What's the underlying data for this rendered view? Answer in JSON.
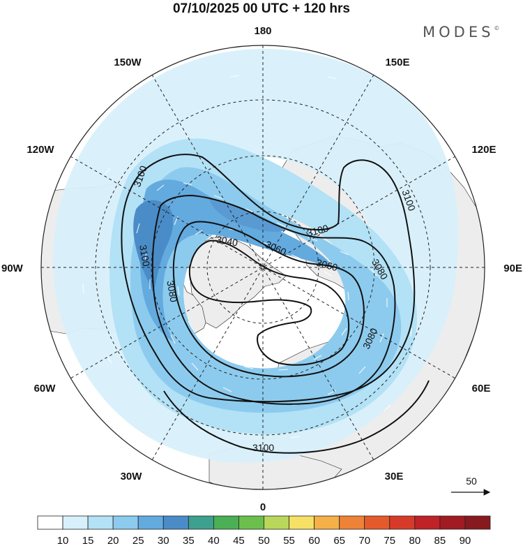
{
  "title": "07/10/2025  00 UTC  + 120 hrs",
  "brand": "MODES",
  "brand_mark": "©",
  "longitude_labels": {
    "top": "180",
    "top_left": "150W",
    "top_right": "150E",
    "upper_left": "120W",
    "upper_right": "120E",
    "left": "90W",
    "right": "90E",
    "lower_left": "60W",
    "lower_right": "60E",
    "bottom_left": "30W",
    "bottom_right": "30E",
    "bottom": "0"
  },
  "contour_labels": [
    "3100",
    "3100",
    "3100",
    "3100",
    "3100",
    "3080",
    "3080",
    "3080",
    "3060",
    "3060",
    "3040"
  ],
  "vector_scale": "50",
  "colorbar": {
    "colors": [
      "#ffffff",
      "#d8f0fb",
      "#b3e1f6",
      "#8ccbee",
      "#63aadf",
      "#4a8cc7",
      "#3ea08f",
      "#4aaf55",
      "#6cbf4d",
      "#b9d75a",
      "#f6e066",
      "#f5b048",
      "#ee8236",
      "#e55a2b",
      "#d83a2a",
      "#bf2227",
      "#a01b22",
      "#871a1e"
    ],
    "labels": [
      "10",
      "15",
      "20",
      "25",
      "30",
      "35",
      "40",
      "45",
      "50",
      "55",
      "60",
      "65",
      "70",
      "75",
      "80",
      "85",
      "90"
    ]
  }
}
